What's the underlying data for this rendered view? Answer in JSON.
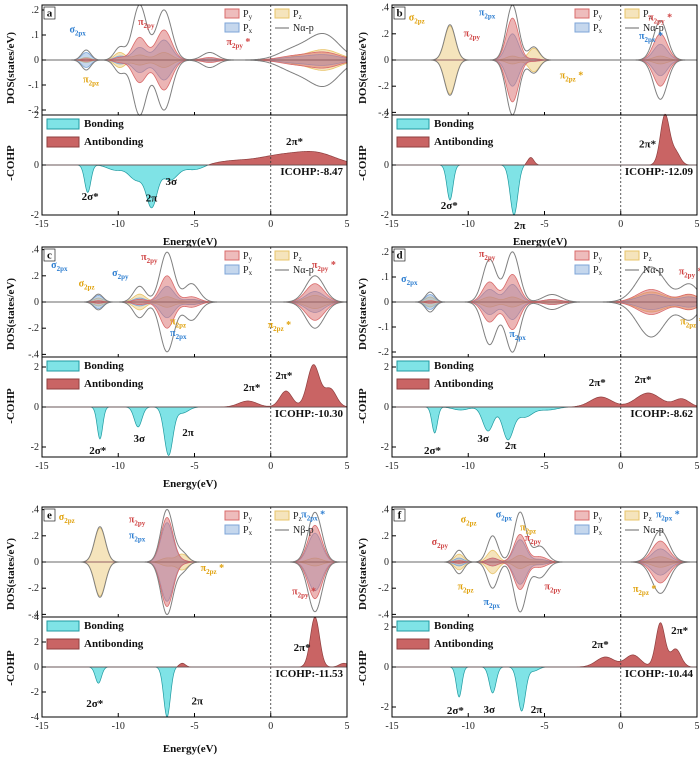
{
  "figure": {
    "dos_ylabel": "DOS(states/eV)",
    "cohp_ylabel": "-COHP",
    "xlabel": "Energy(eV)",
    "bonding_label": "Bonding",
    "antibonding_label": "Antibonding"
  },
  "colors": {
    "py": "#d96b6b",
    "pz": "#e8c46a",
    "px": "#7ea6d8",
    "total": "#808080",
    "bonding": "#7fe3e6",
    "antibonding": "#c96464",
    "label_blue": "#2f7fd1",
    "label_orange": "#e0a20d",
    "label_red": "#d04545"
  },
  "chart_data": [
    {
      "type": "area",
      "panel": "a",
      "row": 0,
      "col": 0,
      "xlim": [
        -15,
        5
      ],
      "dos_ylim": [
        -0.22,
        0.22
      ],
      "cohp_ylim": [
        -2,
        2
      ],
      "dos_yticks": [
        -0.2,
        -0.1,
        0.0,
        0.1,
        0.2
      ],
      "cohp_yticks": [
        -2,
        0,
        2
      ],
      "legend": [
        "P_y",
        "P_z",
        "P_x",
        "Nα-p"
      ],
      "icohp": "ICOHP:-8.47",
      "dos_peaks": [
        {
          "x": -12.1,
          "px": 0.03,
          "py": 0.005,
          "pz": 0.01,
          "total": 0.04,
          "w": 0.3
        },
        {
          "x": -9.9,
          "px": 0.015,
          "py": 0.01,
          "pz": 0.03,
          "total": 0.05,
          "w": 0.35
        },
        {
          "x": -8.6,
          "px": 0.05,
          "py": 0.09,
          "pz": 0.02,
          "total": 0.22,
          "w": 0.45
        },
        {
          "x": -7.0,
          "px": 0.08,
          "py": 0.12,
          "pz": 0.03,
          "total": 0.2,
          "w": 0.5
        },
        {
          "x": -4.0,
          "px": 0.005,
          "py": 0.01,
          "pz": 0.005,
          "total": 0.03,
          "w": 0.5
        },
        {
          "x": 1.5,
          "px": 0.01,
          "py": 0.015,
          "pz": 0.01,
          "total": 0.04,
          "w": 1.0
        },
        {
          "x": 3.5,
          "px": 0.02,
          "py": 0.03,
          "pz": 0.04,
          "total": 0.1,
          "w": 1.0
        }
      ],
      "cohp_peaks": [
        {
          "x": -12.0,
          "v": -1.1,
          "w": 0.2
        },
        {
          "x": -10.2,
          "v": -0.2,
          "w": 0.5
        },
        {
          "x": -8.8,
          "v": -0.6,
          "w": 0.5
        },
        {
          "x": -7.8,
          "v": -1.6,
          "w": 0.35
        },
        {
          "x": -6.6,
          "v": -0.6,
          "w": 0.5
        },
        {
          "x": -5.0,
          "v": -0.2,
          "w": 0.6
        },
        {
          "x": -2.5,
          "v": 0.15,
          "w": 1.2
        },
        {
          "x": 0.5,
          "v": 0.35,
          "w": 1.4
        },
        {
          "x": 3.0,
          "v": 0.45,
          "w": 1.3
        }
      ],
      "dos_labels": [
        {
          "text": "σ2px",
          "x": -13.2,
          "y": 0.11,
          "c": "label_blue"
        },
        {
          "text": "π2py",
          "x": -8.7,
          "y": 0.14,
          "c": "label_red"
        },
        {
          "text": "π2py *",
          "x": -2.9,
          "y": 0.06,
          "c": "label_red"
        },
        {
          "text": "π2pz",
          "x": -12.3,
          "y": -0.09,
          "c": "label_orange"
        }
      ],
      "cohp_labels": [
        {
          "text": "2σ*",
          "x": -12.4,
          "y": -1.4
        },
        {
          "text": "2π",
          "x": -8.2,
          "y": -1.45
        },
        {
          "text": "3σ",
          "x": -6.9,
          "y": -0.8
        },
        {
          "text": "2π*",
          "x": 1.0,
          "y": 0.8
        }
      ]
    },
    {
      "type": "area",
      "panel": "b",
      "row": 0,
      "col": 1,
      "xlim": [
        -15,
        5
      ],
      "dos_ylim": [
        -0.42,
        0.42
      ],
      "cohp_ylim": [
        -2,
        2
      ],
      "dos_yticks": [
        -0.4,
        -0.2,
        0.0,
        0.2,
        0.4
      ],
      "cohp_yticks": [
        -2,
        0,
        2
      ],
      "legend": [
        "P_y",
        "P_z",
        "P_x",
        "Nα-p"
      ],
      "icohp": "ICOHP:-12.09",
      "dos_peaks": [
        {
          "x": -11.2,
          "px": 0.0,
          "py": 0.0,
          "pz": 0.26,
          "total": 0.27,
          "w": 0.35
        },
        {
          "x": -7.1,
          "px": 0.2,
          "py": 0.32,
          "pz": 0.03,
          "total": 0.42,
          "w": 0.4
        },
        {
          "x": -5.7,
          "px": 0.01,
          "py": 0.01,
          "pz": 0.09,
          "total": 0.1,
          "w": 0.35
        },
        {
          "x": 2.6,
          "px": 0.12,
          "py": 0.2,
          "pz": 0.03,
          "total": 0.3,
          "w": 0.45
        }
      ],
      "cohp_peaks": [
        {
          "x": -11.2,
          "v": -1.4,
          "w": 0.2
        },
        {
          "x": -7.0,
          "v": -2.0,
          "w": 0.25
        },
        {
          "x": -5.9,
          "v": 0.3,
          "w": 0.2
        },
        {
          "x": 2.9,
          "v": 2.0,
          "w": 0.3
        },
        {
          "x": 3.6,
          "v": 0.5,
          "w": 0.3
        }
      ],
      "dos_labels": [
        {
          "text": "σ2pz",
          "x": -13.9,
          "y": 0.3,
          "c": "label_orange"
        },
        {
          "text": "π2px",
          "x": -9.3,
          "y": 0.34,
          "c": "label_blue"
        },
        {
          "text": "π2py",
          "x": -10.3,
          "y": 0.18,
          "c": "label_red"
        },
        {
          "text": "π2py *",
          "x": 1.8,
          "y": 0.3,
          "c": "label_red"
        },
        {
          "text": "π2px *",
          "x": 1.2,
          "y": 0.16,
          "c": "label_blue"
        },
        {
          "text": "π2pz *",
          "x": -4.0,
          "y": -0.14,
          "c": "label_orange"
        }
      ],
      "cohp_labels": [
        {
          "text": "2σ*",
          "x": -11.8,
          "y": -1.75
        },
        {
          "text": "2π",
          "x": -7.0,
          "y": -2.55
        },
        {
          "text": "2π*",
          "x": 1.2,
          "y": 0.7
        }
      ]
    },
    {
      "type": "area",
      "panel": "c",
      "row": 1,
      "col": 0,
      "xlim": [
        -15,
        5
      ],
      "dos_ylim": [
        -0.42,
        0.42
      ],
      "cohp_ylim": [
        -2.5,
        2.5
      ],
      "dos_yticks": [
        -0.4,
        -0.2,
        0.0,
        0.2,
        0.4
      ],
      "cohp_yticks": [
        -2,
        0,
        2
      ],
      "legend": [
        "P_y",
        "P_z",
        "P_x",
        "Nα-p"
      ],
      "icohp": "ICOHP:-10.30",
      "dos_peaks": [
        {
          "x": -11.3,
          "px": 0.05,
          "py": 0.01,
          "pz": 0.03,
          "total": 0.06,
          "w": 0.3
        },
        {
          "x": -8.6,
          "px": 0.03,
          "py": 0.02,
          "pz": 0.06,
          "total": 0.12,
          "w": 0.4
        },
        {
          "x": -6.8,
          "px": 0.12,
          "py": 0.2,
          "pz": 0.04,
          "total": 0.38,
          "w": 0.45
        },
        {
          "x": -5.2,
          "px": 0.02,
          "py": 0.04,
          "pz": 0.02,
          "total": 0.14,
          "w": 0.5
        },
        {
          "x": 2.9,
          "px": 0.08,
          "py": 0.14,
          "pz": 0.05,
          "total": 0.2,
          "w": 0.6
        }
      ],
      "cohp_peaks": [
        {
          "x": -11.2,
          "v": -1.6,
          "w": 0.18
        },
        {
          "x": -8.7,
          "v": -1.0,
          "w": 0.25
        },
        {
          "x": -6.7,
          "v": -2.4,
          "w": 0.28
        },
        {
          "x": -5.8,
          "v": -0.3,
          "w": 0.4
        },
        {
          "x": -1.5,
          "v": 0.3,
          "w": 0.6
        },
        {
          "x": 1.0,
          "v": 0.8,
          "w": 0.4
        },
        {
          "x": 2.8,
          "v": 2.1,
          "w": 0.4
        },
        {
          "x": 3.9,
          "v": 0.9,
          "w": 0.4
        }
      ],
      "dos_labels": [
        {
          "text": "σ2px",
          "x": -14.4,
          "y": 0.26,
          "c": "label_blue"
        },
        {
          "text": "σ2pz",
          "x": -12.6,
          "y": 0.12,
          "c": "label_orange"
        },
        {
          "text": "σ2py",
          "x": -10.4,
          "y": 0.2,
          "c": "label_blue"
        },
        {
          "text": "π2py",
          "x": -8.5,
          "y": 0.32,
          "c": "label_red"
        },
        {
          "text": "π2pz",
          "x": -6.6,
          "y": -0.17,
          "c": "label_orange"
        },
        {
          "text": "π2px",
          "x": -6.6,
          "y": -0.26,
          "c": "label_blue"
        },
        {
          "text": "π2py *",
          "x": 2.7,
          "y": 0.26,
          "c": "label_red"
        },
        {
          "text": "π2pz *",
          "x": -0.2,
          "y": -0.2,
          "c": "label_orange"
        }
      ],
      "cohp_labels": [
        {
          "text": "2σ*",
          "x": -11.9,
          "y": -2.35
        },
        {
          "text": "3σ",
          "x": -9.0,
          "y": -1.75
        },
        {
          "text": "2π",
          "x": -5.8,
          "y": -1.45
        },
        {
          "text": "2π*",
          "x": -1.8,
          "y": 0.8
        },
        {
          "text": "2π*",
          "x": 0.3,
          "y": 1.4
        }
      ]
    },
    {
      "type": "area",
      "panel": "d",
      "row": 1,
      "col": 1,
      "xlim": [
        -15,
        5
      ],
      "dos_ylim": [
        -0.22,
        0.22
      ],
      "cohp_ylim": [
        -2.5,
        2.5
      ],
      "dos_yticks": [
        -0.2,
        -0.1,
        0.0,
        0.1,
        0.2
      ],
      "cohp_yticks": [
        -2,
        0,
        2
      ],
      "legend": [
        "P_y",
        "P_z",
        "P_x",
        "Nα-p"
      ],
      "icohp": "ICOHP:-8.62",
      "dos_peaks": [
        {
          "x": -12.5,
          "px": 0.03,
          "py": 0.005,
          "pz": 0.02,
          "total": 0.04,
          "w": 0.3
        },
        {
          "x": -8.6,
          "px": 0.05,
          "py": 0.08,
          "pz": 0.02,
          "total": 0.17,
          "w": 0.45
        },
        {
          "x": -7.1,
          "px": 0.07,
          "py": 0.11,
          "pz": 0.02,
          "total": 0.2,
          "w": 0.45
        },
        {
          "x": -4.5,
          "px": 0.01,
          "py": 0.01,
          "pz": 0.005,
          "total": 0.03,
          "w": 0.6
        },
        {
          "x": 2.0,
          "px": 0.03,
          "py": 0.05,
          "pz": 0.04,
          "total": 0.14,
          "w": 0.9
        },
        {
          "x": 4.5,
          "px": 0.02,
          "py": 0.03,
          "pz": 0.03,
          "total": 0.07,
          "w": 0.6
        }
      ],
      "cohp_peaks": [
        {
          "x": -12.2,
          "v": -1.3,
          "w": 0.18
        },
        {
          "x": -10.5,
          "v": -0.15,
          "w": 0.5
        },
        {
          "x": -8.7,
          "v": -1.2,
          "w": 0.35
        },
        {
          "x": -7.4,
          "v": -1.6,
          "w": 0.35
        },
        {
          "x": -6.3,
          "v": -0.5,
          "w": 0.5
        },
        {
          "x": -4.8,
          "v": -0.15,
          "w": 0.6
        },
        {
          "x": -1.3,
          "v": 0.5,
          "w": 0.7
        },
        {
          "x": 1.8,
          "v": 0.7,
          "w": 0.8
        },
        {
          "x": 4.0,
          "v": 0.4,
          "w": 0.5
        }
      ],
      "dos_labels": [
        {
          "text": "σ2px",
          "x": -14.4,
          "y": 0.08,
          "c": "label_blue"
        },
        {
          "text": "π2py",
          "x": -9.3,
          "y": 0.18,
          "c": "label_red"
        },
        {
          "text": "π2px",
          "x": -7.3,
          "y": -0.14,
          "c": "label_blue"
        },
        {
          "text": "π2py *",
          "x": 3.8,
          "y": 0.11,
          "c": "label_red"
        },
        {
          "text": "π2pz *",
          "x": 3.9,
          "y": -0.09,
          "c": "label_orange"
        }
      ],
      "cohp_labels": [
        {
          "text": "2σ*",
          "x": -12.9,
          "y": -2.35
        },
        {
          "text": "3σ",
          "x": -9.4,
          "y": -1.75
        },
        {
          "text": "2π",
          "x": -7.6,
          "y": -2.1
        },
        {
          "text": "2π*",
          "x": -2.1,
          "y": 1.05
        },
        {
          "text": "2π*",
          "x": 0.9,
          "y": 1.2
        }
      ]
    },
    {
      "type": "area",
      "panel": "e",
      "row": 2,
      "col": 0,
      "xlim": [
        -15,
        5
      ],
      "dos_ylim": [
        -0.42,
        0.42
      ],
      "cohp_ylim": [
        -4,
        4
      ],
      "dos_yticks": [
        -0.4,
        -0.2,
        0.0,
        0.2,
        0.4
      ],
      "cohp_yticks": [
        -4,
        -2,
        0,
        2,
        4
      ],
      "legend": [
        "P_y",
        "P_z",
        "P_x",
        "Nβ-p"
      ],
      "icohp": "ICOHP:-11.53",
      "dos_peaks": [
        {
          "x": -11.2,
          "px": 0.0,
          "py": 0.0,
          "pz": 0.26,
          "total": 0.27,
          "w": 0.35
        },
        {
          "x": -6.8,
          "px": 0.3,
          "py": 0.34,
          "pz": 0.03,
          "total": 0.4,
          "w": 0.4
        },
        {
          "x": -5.8,
          "px": 0.01,
          "py": 0.01,
          "pz": 0.06,
          "total": 0.07,
          "w": 0.35
        },
        {
          "x": 2.9,
          "px": 0.22,
          "py": 0.28,
          "pz": 0.03,
          "total": 0.38,
          "w": 0.45
        }
      ],
      "cohp_peaks": [
        {
          "x": -11.3,
          "v": -1.3,
          "w": 0.2
        },
        {
          "x": -6.8,
          "v": -4.0,
          "w": 0.22
        },
        {
          "x": -5.8,
          "v": 0.3,
          "w": 0.2
        },
        {
          "x": 2.9,
          "v": 4.0,
          "w": 0.3
        },
        {
          "x": 4.8,
          "v": 0.3,
          "w": 0.3
        }
      ],
      "dos_labels": [
        {
          "text": "σ2pz",
          "x": -13.9,
          "y": 0.32,
          "c": "label_orange"
        },
        {
          "text": "π2py",
          "x": -9.3,
          "y": 0.3,
          "c": "label_red"
        },
        {
          "text": "π2px",
          "x": -9.3,
          "y": 0.18,
          "c": "label_blue"
        },
        {
          "text": "π2pz *",
          "x": -4.6,
          "y": -0.07,
          "c": "label_orange"
        },
        {
          "text": "π2px *",
          "x": 2.0,
          "y": 0.34,
          "c": "label_blue"
        },
        {
          "text": "π2py *",
          "x": 1.4,
          "y": -0.25,
          "c": "label_red"
        }
      ],
      "cohp_labels": [
        {
          "text": "2σ*",
          "x": -12.1,
          "y": -3.2
        },
        {
          "text": "2π",
          "x": -5.2,
          "y": -3.0
        },
        {
          "text": "2π*",
          "x": 1.5,
          "y": 1.3
        }
      ]
    },
    {
      "type": "area",
      "panel": "f",
      "row": 2,
      "col": 1,
      "xlim": [
        -15,
        5
      ],
      "dos_ylim": [
        -0.42,
        0.42
      ],
      "cohp_ylim": [
        -2.5,
        2.5
      ],
      "dos_yticks": [
        -0.4,
        -0.2,
        0.0,
        0.2,
        0.4
      ],
      "cohp_yticks": [
        -2,
        0,
        2
      ],
      "legend": [
        "P_y",
        "P_z",
        "P_x",
        "Nα-p"
      ],
      "icohp": "ICOHP:-10.44",
      "dos_peaks": [
        {
          "x": -10.6,
          "px": 0.03,
          "py": 0.01,
          "pz": 0.06,
          "total": 0.09,
          "w": 0.3
        },
        {
          "x": -8.4,
          "px": 0.03,
          "py": 0.03,
          "pz": 0.09,
          "total": 0.2,
          "w": 0.35
        },
        {
          "x": -6.6,
          "px": 0.17,
          "py": 0.21,
          "pz": 0.05,
          "total": 0.38,
          "w": 0.4
        },
        {
          "x": -5.3,
          "px": 0.02,
          "py": 0.04,
          "pz": 0.02,
          "total": 0.12,
          "w": 0.45
        },
        {
          "x": 2.6,
          "px": 0.1,
          "py": 0.16,
          "pz": 0.04,
          "total": 0.24,
          "w": 0.55
        }
      ],
      "cohp_peaks": [
        {
          "x": -10.6,
          "v": -1.5,
          "w": 0.18
        },
        {
          "x": -8.4,
          "v": -1.3,
          "w": 0.22
        },
        {
          "x": -6.5,
          "v": -2.2,
          "w": 0.25
        },
        {
          "x": -5.7,
          "v": -0.2,
          "w": 0.3
        },
        {
          "x": -1.0,
          "v": 0.5,
          "w": 0.6
        },
        {
          "x": 0.8,
          "v": 0.6,
          "w": 0.5
        },
        {
          "x": 2.6,
          "v": 2.2,
          "w": 0.3
        },
        {
          "x": 3.6,
          "v": 0.9,
          "w": 0.35
        }
      ],
      "dos_labels": [
        {
          "text": "σ2py",
          "x": -12.4,
          "y": 0.13,
          "c": "label_red"
        },
        {
          "text": "σ2pz",
          "x": -10.5,
          "y": 0.3,
          "c": "label_orange"
        },
        {
          "text": "σ2px",
          "x": -8.2,
          "y": 0.34,
          "c": "label_blue"
        },
        {
          "text": "π2pz",
          "x": -6.6,
          "y": 0.24,
          "c": "label_orange"
        },
        {
          "text": "π2py",
          "x": -6.3,
          "y": 0.16,
          "c": "label_red"
        },
        {
          "text": "π2pz",
          "x": -10.7,
          "y": -0.21,
          "c": "label_orange"
        },
        {
          "text": "π2px",
          "x": -9.0,
          "y": -0.33,
          "c": "label_blue"
        },
        {
          "text": "π2py",
          "x": -5.0,
          "y": -0.21,
          "c": "label_red"
        },
        {
          "text": "π2px *",
          "x": 2.3,
          "y": 0.34,
          "c": "label_blue"
        },
        {
          "text": "π2pz *",
          "x": 0.8,
          "y": -0.23,
          "c": "label_orange"
        }
      ],
      "cohp_labels": [
        {
          "text": "2σ*",
          "x": -11.4,
          "y": -2.35
        },
        {
          "text": "3σ",
          "x": -9.0,
          "y": -2.3
        },
        {
          "text": "2π",
          "x": -5.9,
          "y": -2.3
        },
        {
          "text": "2π*",
          "x": -1.9,
          "y": 0.95
        },
        {
          "text": "2π*",
          "x": 3.3,
          "y": 1.65
        }
      ]
    }
  ]
}
